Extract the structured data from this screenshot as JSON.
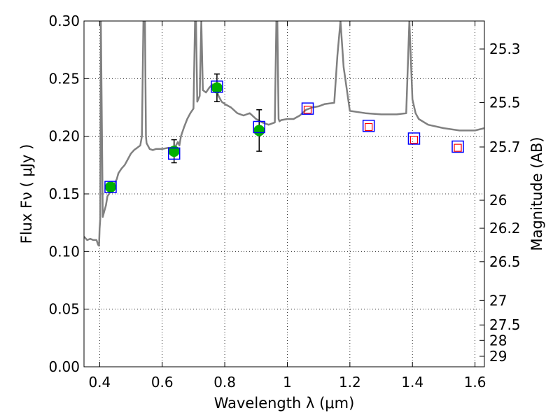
{
  "chart_data": {
    "type": "scatter",
    "xlabel": "Wavelength  λ (μm)",
    "ylabel": "Flux  Fν  ( μJy )",
    "y2label": "Magnitude (AB)",
    "xlim": [
      0.35,
      1.63
    ],
    "ylim": [
      0.0,
      0.3
    ],
    "grid": true,
    "xticks": [
      0.4,
      0.6,
      0.8,
      1.0,
      1.2,
      1.4,
      1.6
    ],
    "xtick_labels": [
      "0.4",
      "0.6",
      "0.8",
      "1",
      "1.2",
      "1.4",
      "1.6"
    ],
    "yticks": [
      0.0,
      0.05,
      0.1,
      0.15,
      0.2,
      0.25,
      0.3
    ],
    "ytick_labels": [
      "0.00",
      "0.05",
      "0.10",
      "0.15",
      "0.20",
      "0.25",
      "0.30"
    ],
    "right_axis": {
      "ticks": [
        {
          "label": "25.3",
          "flux": 0.2757
        },
        {
          "label": "25.5",
          "flux": 0.2293
        },
        {
          "label": "25.7",
          "flux": 0.1907
        },
        {
          "label": "26",
          "flux": 0.1445
        },
        {
          "label": "26.2",
          "flux": 0.1202
        },
        {
          "label": "26.5",
          "flux": 0.0912
        },
        {
          "label": "27",
          "flux": 0.0575
        },
        {
          "label": "27.5",
          "flux": 0.0363
        },
        {
          "label": "28",
          "flux": 0.0229
        },
        {
          "label": "29",
          "flux": 0.0091
        }
      ]
    },
    "series": [
      {
        "kind": "line",
        "color": "#808080",
        "x": [
          0.35,
          0.36,
          0.37,
          0.38,
          0.39,
          0.395,
          0.398,
          0.4,
          0.402,
          0.404,
          0.41,
          0.415,
          0.42,
          0.425,
          0.43,
          0.44,
          0.45,
          0.455,
          0.46,
          0.47,
          0.48,
          0.49,
          0.5,
          0.51,
          0.52,
          0.53,
          0.535,
          0.54,
          0.545,
          0.548,
          0.55,
          0.56,
          0.57,
          0.58,
          0.6,
          0.62,
          0.64,
          0.65,
          0.655,
          0.66,
          0.67,
          0.68,
          0.69,
          0.7,
          0.705,
          0.708,
          0.712,
          0.72,
          0.725,
          0.73,
          0.74,
          0.75,
          0.76,
          0.77,
          0.78,
          0.79,
          0.8,
          0.82,
          0.84,
          0.86,
          0.88,
          0.9,
          0.92,
          0.94,
          0.96,
          0.965,
          0.968,
          0.972,
          0.975,
          0.98,
          1.0,
          1.02,
          1.04,
          1.06,
          1.08,
          1.1,
          1.12,
          1.15,
          1.16,
          1.17,
          1.18,
          1.2,
          1.25,
          1.3,
          1.35,
          1.38,
          1.39,
          1.4,
          1.41,
          1.42,
          1.45,
          1.5,
          1.55,
          1.6,
          1.63
        ],
        "y": [
          0.113,
          0.11,
          0.111,
          0.11,
          0.11,
          0.106,
          0.105,
          0.12,
          0.128,
          0.3,
          0.13,
          0.135,
          0.14,
          0.148,
          0.15,
          0.155,
          0.16,
          0.163,
          0.168,
          0.172,
          0.175,
          0.18,
          0.185,
          0.188,
          0.19,
          0.192,
          0.2,
          0.3,
          0.3,
          0.2,
          0.194,
          0.189,
          0.188,
          0.189,
          0.189,
          0.19,
          0.19,
          0.195,
          0.192,
          0.2,
          0.208,
          0.215,
          0.22,
          0.224,
          0.3,
          0.3,
          0.23,
          0.235,
          0.3,
          0.24,
          0.238,
          0.242,
          0.245,
          0.243,
          0.235,
          0.23,
          0.228,
          0.225,
          0.22,
          0.218,
          0.22,
          0.215,
          0.212,
          0.21,
          0.212,
          0.3,
          0.3,
          0.215,
          0.213,
          0.214,
          0.215,
          0.215,
          0.218,
          0.223,
          0.225,
          0.226,
          0.228,
          0.229,
          0.27,
          0.3,
          0.26,
          0.222,
          0.22,
          0.219,
          0.219,
          0.22,
          0.3,
          0.232,
          0.22,
          0.215,
          0.21,
          0.207,
          0.205,
          0.205,
          0.207
        ]
      },
      {
        "kind": "points",
        "marker": "circle",
        "color": "#00b000",
        "x": [
          0.435,
          0.638,
          0.775,
          0.91
        ],
        "y": [
          0.156,
          0.187,
          0.242,
          0.205
        ],
        "yerr": [
          0.0,
          0.01,
          0.012,
          0.018
        ]
      },
      {
        "kind": "points",
        "marker": "square-open",
        "color": "#0000ff",
        "x": [
          0.435,
          0.638,
          0.775,
          0.91,
          1.065,
          1.26,
          1.405,
          1.545
        ],
        "y": [
          0.156,
          0.185,
          0.243,
          0.208,
          0.224,
          0.209,
          0.198,
          0.191
        ]
      },
      {
        "kind": "points",
        "marker": "square-open-small",
        "color": "#ff0000",
        "x": [
          1.065,
          1.26,
          1.405,
          1.545
        ],
        "y": [
          0.223,
          0.208,
          0.197,
          0.19
        ]
      }
    ]
  }
}
